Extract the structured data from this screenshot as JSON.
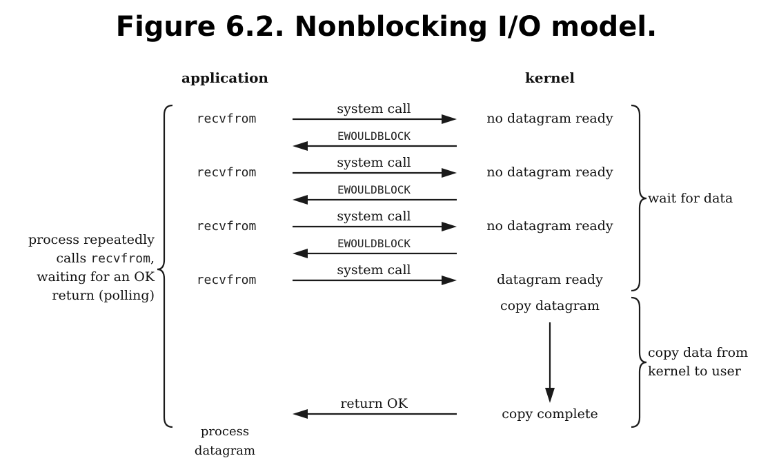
{
  "title": "Figure 6.2. Nonblocking I/O model.",
  "headers": {
    "application": "application",
    "kernel": "kernel"
  },
  "rounds": [
    {
      "call": "recvfrom",
      "request": "system call",
      "kernel": "no datagram ready",
      "reply": "EWOULDBLOCK"
    },
    {
      "call": "recvfrom",
      "request": "system call",
      "kernel": "no datagram ready",
      "reply": "EWOULDBLOCK"
    },
    {
      "call": "recvfrom",
      "request": "system call",
      "kernel": "no datagram ready",
      "reply": "EWOULDBLOCK"
    },
    {
      "call": "recvfrom",
      "request": "system call",
      "kernel": "datagram ready"
    }
  ],
  "kernel_steps": {
    "copy_start": "copy datagram",
    "copy_end": "copy complete"
  },
  "return_label": "return OK",
  "left_note": {
    "line1": "process repeatedly",
    "line2_prefix": "calls ",
    "line2_code": "recvfrom",
    "line2_suffix": ",",
    "line3": "waiting for an OK",
    "line4": "return (polling)"
  },
  "right_notes": {
    "wait": "wait for data",
    "copy_line1": "copy data from",
    "copy_line2": "kernel to user"
  },
  "bottom_note": {
    "line1": "process",
    "line2": "datagram"
  }
}
